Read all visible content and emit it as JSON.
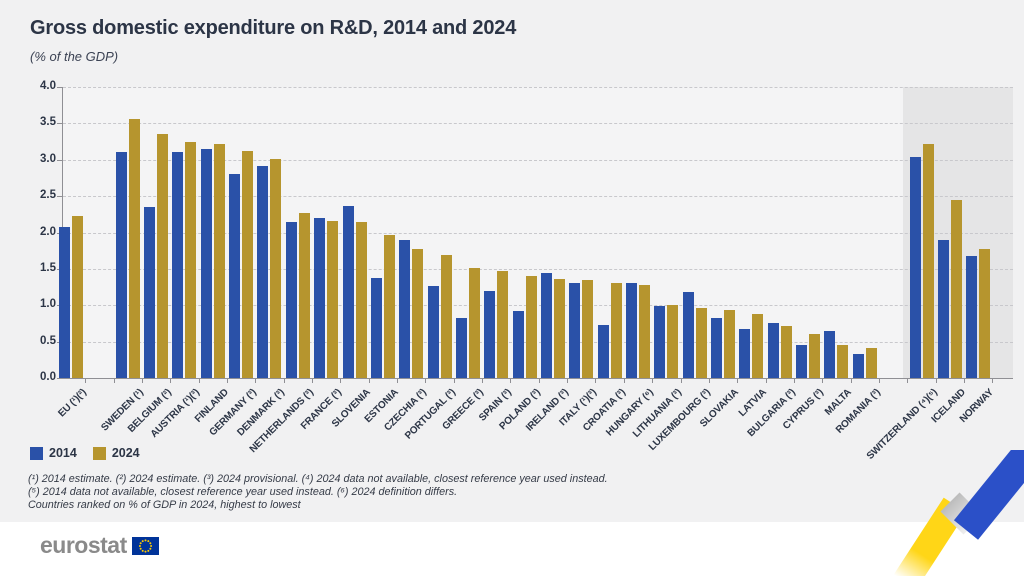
{
  "title": "Gross domestic expenditure on R&D, 2014 and 2024",
  "subtitle": "(% of the GDP)",
  "legend": {
    "items": [
      {
        "label": "2014"
      },
      {
        "label": "2024"
      }
    ]
  },
  "footnotes": [
    "(¹) 2014 estimate. (²) 2024 estimate. (³) 2024 provisional. (⁴) 2024 data not available, closest reference year used instead.",
    "(⁵) 2014 data not available, closest reference year used instead. (⁶) 2024 definition differs.",
    "Countries ranked on % of GDP in 2024, highest to lowest"
  ],
  "logo": {
    "text": "eurostat"
  },
  "colors": {
    "bar_2014": "#2a51a8",
    "bar_2024": "#b6952e",
    "page_background": "#f1f1f2",
    "highlight_band": "#e5e5e6",
    "text": "#2c3546",
    "eu_flag_blue": "#003399",
    "eu_flag_yellow": "#ffcc00",
    "ribbon_yellow": "#ffd617",
    "ribbon_blue": "#2b50c8",
    "ribbon_gray": "#cdcdcd",
    "logo_gray": "#8a8a8a"
  },
  "chart_data": {
    "type": "bar",
    "title": "Gross domestic expenditure on R&D, 2014 and 2024",
    "subtitle": "(% of the GDP)",
    "xlabel": "",
    "ylabel": "% of the GDP",
    "ylim": [
      0,
      4.0
    ],
    "ytick_step": 0.5,
    "grid": "horizontal dashed",
    "legend_position": "bottom-left",
    "categories": [
      "EU (¹)(²)",
      "SWEDEN (¹)",
      "BELGIUM (²)",
      "AUSTRIA (¹)(³)",
      "FINLAND",
      "GERMANY (³)",
      "DENMARK (³)",
      "NETHERLANDS (³)",
      "FRANCE (³)",
      "SLOVENIA",
      "ESTONIA",
      "CZECHIA (³)",
      "PORTUGAL (³)",
      "GREECE (³)",
      "SPAIN (³)",
      "POLAND (³)",
      "IRELAND (³)",
      "ITALY (¹)(³)",
      "CROATIA (³)",
      "HUNGARY (⁶)",
      "LITHUANIA (³)",
      "LUXEMBOURG (³)",
      "SLOVAKIA",
      "LATVIA",
      "BULGARIA (³)",
      "CYPRUS (³)",
      "MALTA",
      "ROMANIA (³)",
      "SWITZERLAND (⁴)(⁵)",
      "ICELAND",
      "NORWAY"
    ],
    "series": [
      {
        "name": "2014",
        "values": [
          2.07,
          3.11,
          2.35,
          3.1,
          3.15,
          2.8,
          2.91,
          2.14,
          2.2,
          2.37,
          1.38,
          1.9,
          1.26,
          0.82,
          1.2,
          0.92,
          1.44,
          1.3,
          0.73,
          1.31,
          0.99,
          1.18,
          0.82,
          0.67,
          0.75,
          0.46,
          0.64,
          0.33,
          3.04,
          1.9,
          1.68
        ]
      },
      {
        "name": "2024",
        "values": [
          2.22,
          3.56,
          3.36,
          3.25,
          3.21,
          3.12,
          3.01,
          2.27,
          2.16,
          2.14,
          1.96,
          1.78,
          1.69,
          1.51,
          1.47,
          1.4,
          1.36,
          1.35,
          1.31,
          1.28,
          1.01,
          0.96,
          0.94,
          0.88,
          0.72,
          0.61,
          0.46,
          0.41,
          3.21,
          2.45,
          1.77
        ]
      }
    ],
    "highlight_band_categories": [
      "SWITZERLAND (⁴)(⁵)",
      "ICELAND",
      "NORWAY"
    ]
  }
}
